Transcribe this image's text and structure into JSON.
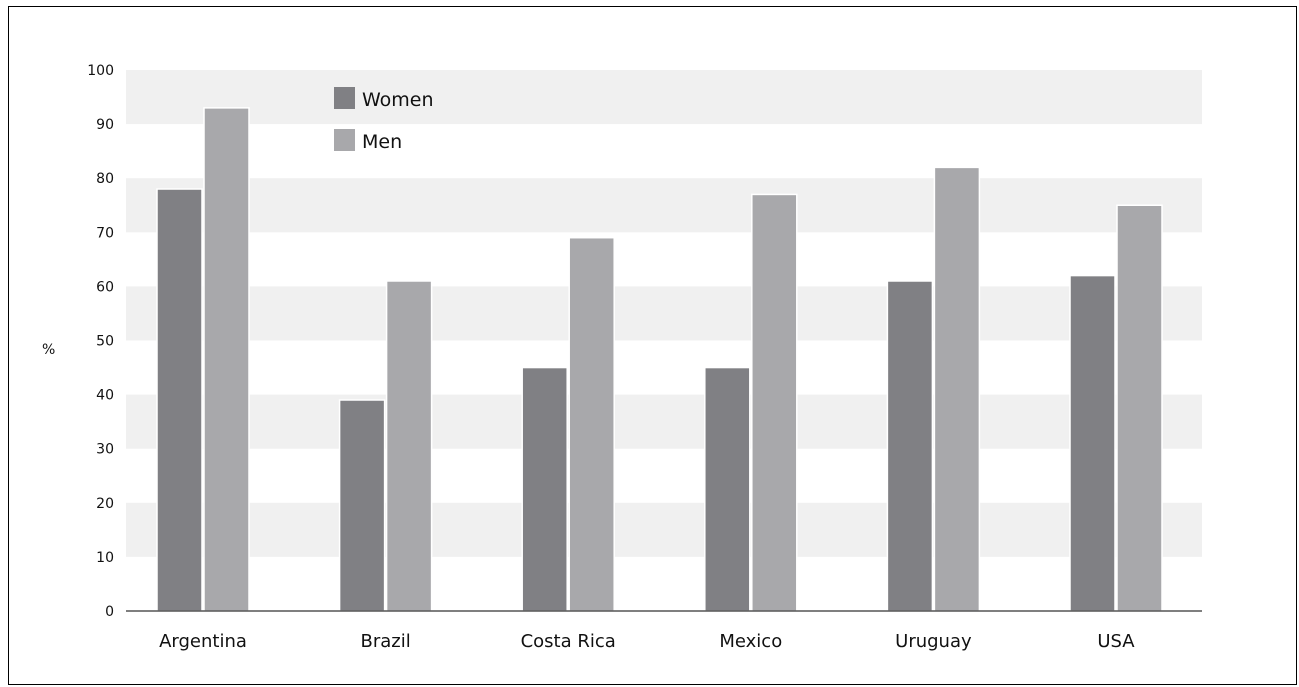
{
  "chart_data": {
    "type": "bar",
    "title": "",
    "xlabel": "",
    "ylabel": "%",
    "ylim": [
      0,
      100
    ],
    "yticks": [
      0,
      10,
      20,
      30,
      40,
      50,
      60,
      70,
      80,
      90,
      100
    ],
    "categories": [
      "Argentina",
      "Brazil",
      "Costa Rica",
      "Mexico",
      "Uruguay",
      "USA"
    ],
    "series": [
      {
        "name": "Women",
        "color": "#808084",
        "values": [
          78,
          39,
          45,
          45,
          61,
          62
        ]
      },
      {
        "name": "Men",
        "color": "#a8a8ab",
        "values": [
          93,
          61,
          69,
          77,
          82,
          75
        ]
      }
    ],
    "grid": "alternating horizontal bands",
    "band_color": "#f0f0f0",
    "legend_position": "top-left inside plot"
  }
}
